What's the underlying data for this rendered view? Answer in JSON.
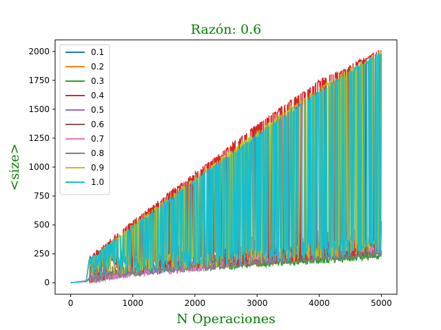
{
  "chart_data": {
    "type": "line",
    "title": "Razón: 0.6",
    "xlabel": "N Operaciones",
    "ylabel": "<size>",
    "title_color": "#008000",
    "xlim": [
      -250,
      5250
    ],
    "ylim": [
      -100,
      2100
    ],
    "xticks": [
      0,
      1000,
      2000,
      3000,
      4000,
      5000
    ],
    "yticks": [
      0,
      250,
      500,
      750,
      1000,
      1250,
      1500,
      1750,
      2000
    ],
    "grid": false,
    "legend_position": "top-left",
    "series": [
      {
        "name": "0.1",
        "color": "#1f77b4",
        "x": [
          0,
          250,
          300,
          1000,
          2000,
          3000,
          4000,
          5000
        ],
        "y": [
          0,
          10,
          40,
          100,
          150,
          200,
          220,
          260
        ]
      },
      {
        "name": "0.2",
        "color": "#ff7f0e",
        "x": [
          0,
          250,
          300,
          1000,
          2000,
          3000,
          4000,
          5000
        ],
        "y": [
          0,
          12,
          30,
          110,
          160,
          180,
          230,
          270
        ]
      },
      {
        "name": "0.3",
        "color": "#2ca02c",
        "x": [
          0,
          250,
          300,
          1000,
          2000,
          3000,
          4000,
          5000
        ],
        "y": [
          0,
          10,
          35,
          90,
          140,
          170,
          200,
          240
        ]
      },
      {
        "name": "0.4",
        "color": "#d62728",
        "x": [
          0,
          250,
          300,
          1000,
          2000,
          3000,
          4000,
          5000
        ],
        "y": [
          0,
          15,
          210,
          530,
          940,
          1360,
          1740,
          2010
        ]
      },
      {
        "name": "0.5",
        "color": "#9467bd",
        "x": [
          0,
          250,
          300,
          1000,
          2000,
          3000,
          4000,
          5000
        ],
        "y": [
          0,
          10,
          30,
          100,
          150,
          200,
          250,
          280
        ]
      },
      {
        "name": "0.6",
        "color": "#8c564b",
        "x": [
          0,
          250,
          300,
          1000,
          2000,
          3000,
          4000,
          5000
        ],
        "y": [
          0,
          10,
          35,
          120,
          160,
          190,
          240,
          290
        ]
      },
      {
        "name": "0.7",
        "color": "#e377c2",
        "x": [
          0,
          250,
          300,
          1000,
          2000,
          3000,
          4000,
          5000
        ],
        "y": [
          0,
          10,
          30,
          90,
          130,
          200,
          250,
          300
        ]
      },
      {
        "name": "0.8",
        "color": "#7f7f7f",
        "x": [
          0,
          250,
          300,
          1000,
          2000,
          3000,
          4000,
          5000
        ],
        "y": [
          0,
          10,
          30,
          100,
          140,
          180,
          220,
          260
        ]
      },
      {
        "name": "0.9",
        "color": "#bcbd22",
        "x": [
          0,
          250,
          300,
          1000,
          2000,
          3000,
          4000,
          5000
        ],
        "y": [
          0,
          10,
          190,
          500,
          900,
          1300,
          1680,
          2000
        ]
      },
      {
        "name": "1.0",
        "color": "#17becf",
        "x": [
          0,
          250,
          300,
          1000,
          2000,
          3000,
          4000,
          5000
        ],
        "y": [
          0,
          10,
          200,
          480,
          880,
          1270,
          1650,
          1990
        ]
      }
    ]
  }
}
